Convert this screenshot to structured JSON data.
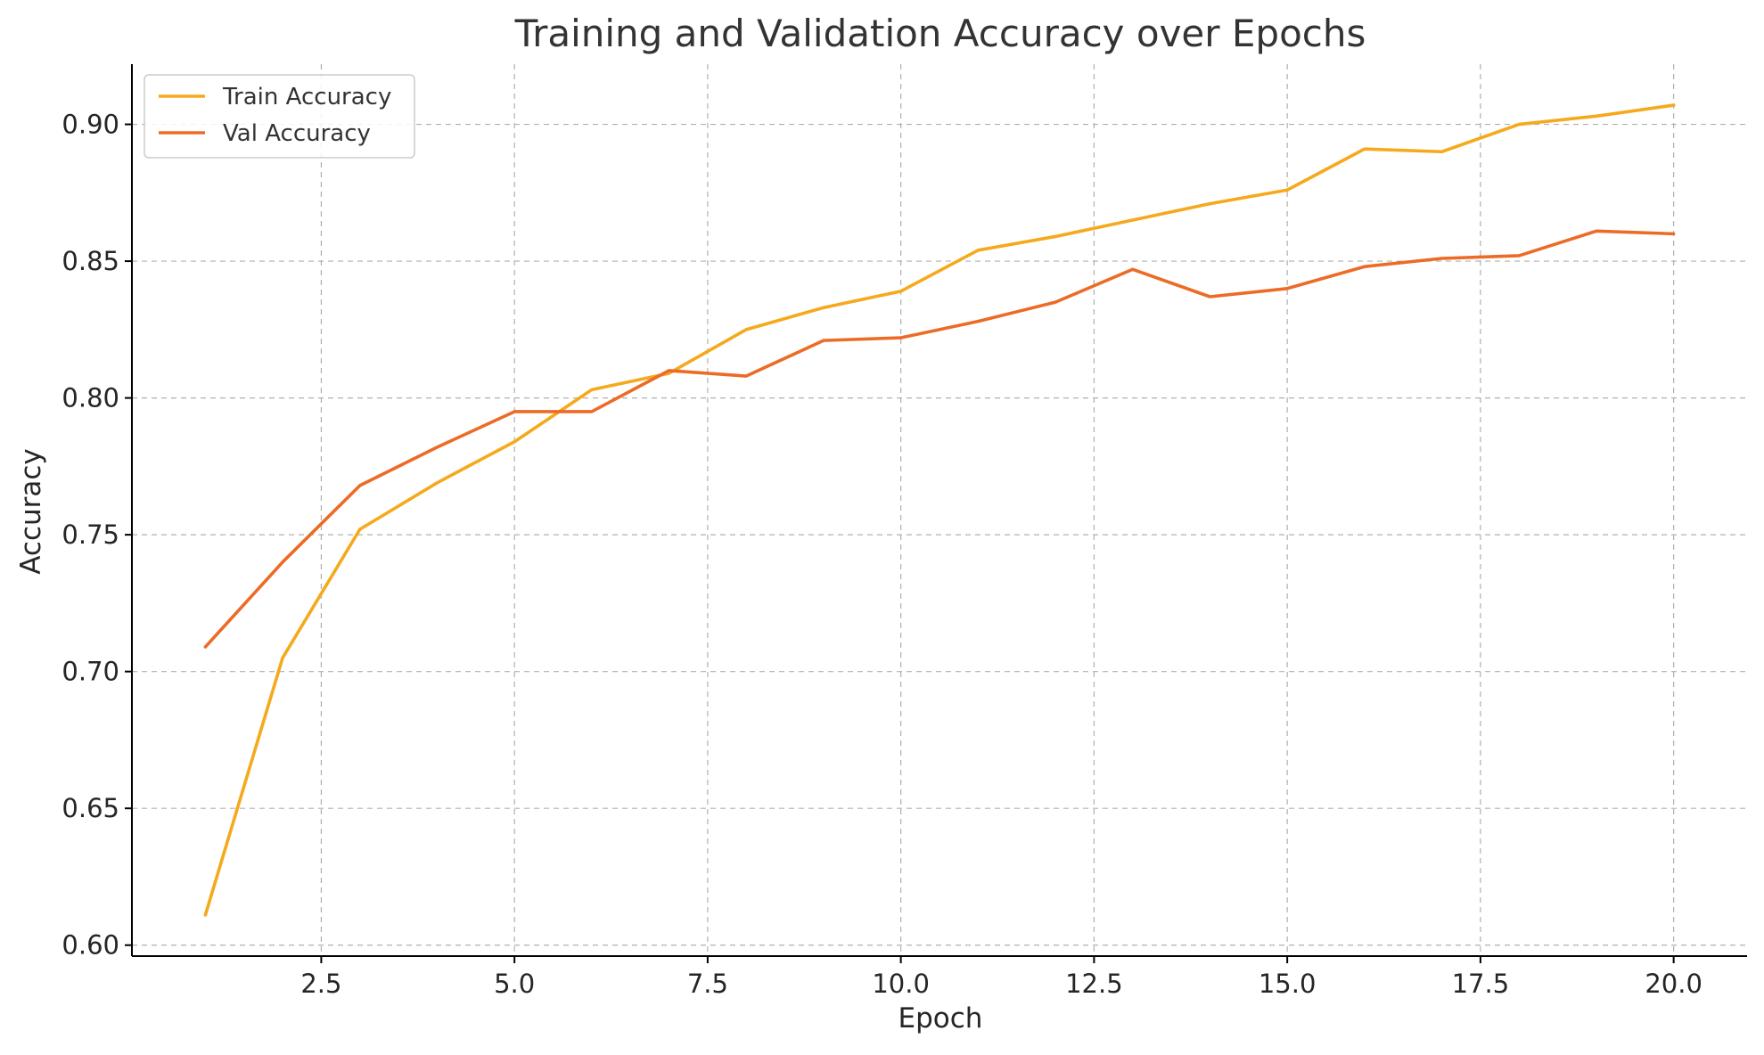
{
  "chart_data": {
    "type": "line",
    "title": "Training and Validation Accuracy over Epochs",
    "xlabel": "Epoch",
    "ylabel": "Accuracy",
    "xlim": [
      0.05,
      20.95
    ],
    "ylim": [
      0.596,
      0.922
    ],
    "xticks": [
      2.5,
      5.0,
      7.5,
      10.0,
      12.5,
      15.0,
      17.5,
      20.0
    ],
    "xtick_labels": [
      "2.5",
      "5.0",
      "7.5",
      "10.0",
      "12.5",
      "15.0",
      "17.5",
      "20.0"
    ],
    "yticks": [
      0.6,
      0.65,
      0.7,
      0.75,
      0.8,
      0.85,
      0.9
    ],
    "ytick_labels": [
      "0.60",
      "0.65",
      "0.70",
      "0.75",
      "0.80",
      "0.85",
      "0.90"
    ],
    "grid": true,
    "legend_position": "top-left",
    "x": [
      1,
      2,
      3,
      4,
      5,
      6,
      7,
      8,
      9,
      10,
      11,
      12,
      13,
      14,
      15,
      16,
      17,
      18,
      19,
      20
    ],
    "series": [
      {
        "name": "Train Accuracy",
        "color": "#f5a91c",
        "values": [
          0.611,
          0.705,
          0.752,
          0.769,
          0.784,
          0.803,
          0.809,
          0.825,
          0.833,
          0.839,
          0.854,
          0.859,
          0.865,
          0.871,
          0.876,
          0.891,
          0.89,
          0.9,
          0.903,
          0.907
        ]
      },
      {
        "name": "Val Accuracy",
        "color": "#ec6b26",
        "values": [
          0.709,
          0.74,
          0.768,
          0.782,
          0.795,
          0.795,
          0.81,
          0.808,
          0.821,
          0.822,
          0.828,
          0.835,
          0.847,
          0.837,
          0.84,
          0.848,
          0.851,
          0.852,
          0.861,
          0.86
        ]
      }
    ]
  }
}
